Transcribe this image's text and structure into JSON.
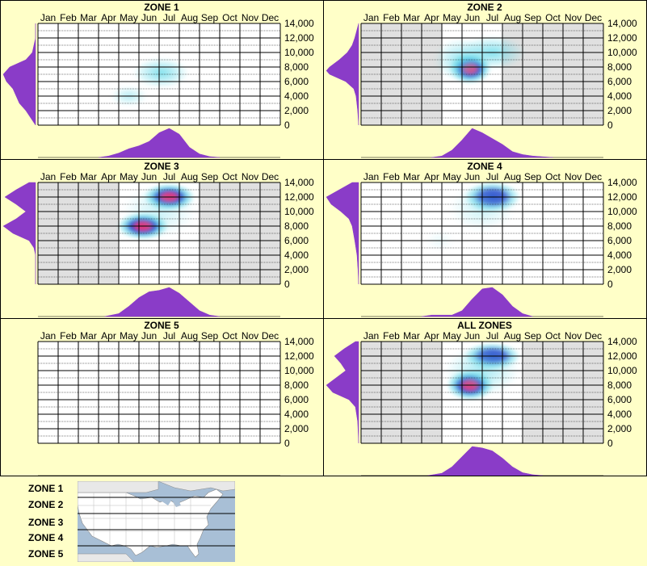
{
  "figure": {
    "months": [
      "Jan",
      "Feb",
      "Mar",
      "Apr",
      "May",
      "Jun",
      "Jul",
      "Aug",
      "Sep",
      "Oct",
      "Nov",
      "Dec"
    ],
    "y_ticks": [
      "14,000",
      "12,000",
      "10,000",
      "8,000",
      "6,000",
      "4,000",
      "2,000",
      "0"
    ],
    "colors": {
      "background": "#ffffc8",
      "panel_border": "#000000",
      "plot_bg_active": "#e0e0e0",
      "plot_bg_none": "#ffffff",
      "density_fill": "#8a3cc8",
      "heat_low": "#5fd8e8",
      "heat_mid": "#1f3ec8",
      "heat_high": "#e8206e"
    }
  },
  "chart_data": [
    {
      "type": "heatmap",
      "title": "ZONE 1",
      "x_categories": [
        "Jan",
        "Feb",
        "Mar",
        "Apr",
        "May",
        "Jun",
        "Jul",
        "Aug",
        "Sep",
        "Oct",
        "Nov",
        "Dec"
      ],
      "ylim": [
        0,
        14000
      ],
      "grid": true,
      "active_months": [],
      "hotspots": [
        {
          "month": 6.6,
          "elev": 7200,
          "intensity": 0.35,
          "sx": 0.6,
          "sy": 900
        },
        {
          "month": 5.0,
          "elev": 4000,
          "intensity": 0.2,
          "sx": 0.4,
          "sy": 600
        }
      ],
      "elevation_density": [
        [
          0,
          0
        ],
        [
          1000,
          0.15
        ],
        [
          2000,
          0.3
        ],
        [
          3000,
          0.5
        ],
        [
          4000,
          0.6
        ],
        [
          5000,
          0.7
        ],
        [
          6000,
          0.9
        ],
        [
          7000,
          1.0
        ],
        [
          8000,
          0.8
        ],
        [
          9000,
          0.3
        ],
        [
          10000,
          0.1
        ],
        [
          11000,
          0.05
        ],
        [
          12000,
          0
        ],
        [
          14000,
          0
        ]
      ],
      "month_density": [
        [
          3.5,
          0
        ],
        [
          4.0,
          0.05
        ],
        [
          4.5,
          0.15
        ],
        [
          5.0,
          0.3
        ],
        [
          5.5,
          0.4
        ],
        [
          6.0,
          0.55
        ],
        [
          6.5,
          0.85
        ],
        [
          7.0,
          1.0
        ],
        [
          7.5,
          0.8
        ],
        [
          8.0,
          0.35
        ],
        [
          8.5,
          0.12
        ],
        [
          9.0,
          0.03
        ],
        [
          9.5,
          0
        ]
      ]
    },
    {
      "type": "heatmap",
      "title": "ZONE 2",
      "x_categories": [
        "Jan",
        "Feb",
        "Mar",
        "Apr",
        "May",
        "Jun",
        "Jul",
        "Aug",
        "Sep",
        "Oct",
        "Nov",
        "Dec"
      ],
      "ylim": [
        0,
        14000
      ],
      "grid": true,
      "active_months": [
        "Jan",
        "Feb",
        "Mar",
        "Apr",
        "Aug",
        "Sep",
        "Oct",
        "Nov",
        "Dec"
      ],
      "hotspots": [
        {
          "month": 5.9,
          "elev": 7800,
          "intensity": 1.0,
          "sx": 0.45,
          "sy": 900
        },
        {
          "month": 7.0,
          "elev": 10000,
          "intensity": 0.35,
          "sx": 0.7,
          "sy": 1000
        },
        {
          "month": 5.5,
          "elev": 9000,
          "intensity": 0.3,
          "sx": 0.6,
          "sy": 1300
        }
      ],
      "elevation_density": [
        [
          0,
          0
        ],
        [
          2000,
          0.03
        ],
        [
          4000,
          0.08
        ],
        [
          5000,
          0.15
        ],
        [
          6000,
          0.4
        ],
        [
          7000,
          0.9
        ],
        [
          7500,
          1.0
        ],
        [
          8000,
          0.9
        ],
        [
          9000,
          0.6
        ],
        [
          10000,
          0.35
        ],
        [
          11000,
          0.2
        ],
        [
          12000,
          0.12
        ],
        [
          13000,
          0.06
        ],
        [
          14000,
          0
        ]
      ],
      "month_density": [
        [
          4.0,
          0
        ],
        [
          4.5,
          0.05
        ],
        [
          5.0,
          0.25
        ],
        [
          5.5,
          0.6
        ],
        [
          6.0,
          1.0
        ],
        [
          6.5,
          0.85
        ],
        [
          7.0,
          0.65
        ],
        [
          7.5,
          0.45
        ],
        [
          8.0,
          0.2
        ],
        [
          8.5,
          0.1
        ],
        [
          9.0,
          0.05
        ],
        [
          10.0,
          0
        ]
      ]
    },
    {
      "type": "heatmap",
      "title": "ZONE 3",
      "x_categories": [
        "Jan",
        "Feb",
        "Mar",
        "Apr",
        "May",
        "Jun",
        "Jul",
        "Aug",
        "Sep",
        "Oct",
        "Nov",
        "Dec"
      ],
      "ylim": [
        0,
        14000
      ],
      "grid": true,
      "active_months": [
        "Jan",
        "Feb",
        "Mar",
        "Apr",
        "Sep",
        "Oct",
        "Nov",
        "Dec"
      ],
      "hotspots": [
        {
          "month": 7.0,
          "elev": 12000,
          "intensity": 1.0,
          "sx": 0.55,
          "sy": 800
        },
        {
          "month": 5.7,
          "elev": 8000,
          "intensity": 0.95,
          "sx": 0.55,
          "sy": 800
        },
        {
          "month": 6.5,
          "elev": 10000,
          "intensity": 0.15,
          "sx": 0.8,
          "sy": 1500
        }
      ],
      "elevation_density": [
        [
          0,
          0
        ],
        [
          4000,
          0
        ],
        [
          5000,
          0.05
        ],
        [
          6000,
          0.2
        ],
        [
          7000,
          0.7
        ],
        [
          8000,
          1.0
        ],
        [
          9000,
          0.6
        ],
        [
          10000,
          0.3
        ],
        [
          11000,
          0.6
        ],
        [
          12000,
          0.95
        ],
        [
          13000,
          0.6
        ],
        [
          14000,
          0.2
        ]
      ],
      "month_density": [
        [
          3.8,
          0
        ],
        [
          4.5,
          0.1
        ],
        [
          5.0,
          0.35
        ],
        [
          5.5,
          0.65
        ],
        [
          6.0,
          0.85
        ],
        [
          6.5,
          0.9
        ],
        [
          7.0,
          1.0
        ],
        [
          7.5,
          0.8
        ],
        [
          8.0,
          0.5
        ],
        [
          8.5,
          0.2
        ],
        [
          9.0,
          0.05
        ],
        [
          9.5,
          0
        ]
      ]
    },
    {
      "type": "heatmap",
      "title": "ZONE 4",
      "x_categories": [
        "Jan",
        "Feb",
        "Mar",
        "Apr",
        "May",
        "Jun",
        "Jul",
        "Aug",
        "Sep",
        "Oct",
        "Nov",
        "Dec"
      ],
      "ylim": [
        0,
        14000
      ],
      "grid": true,
      "active_months": [],
      "hotspots": [
        {
          "month": 7.0,
          "elev": 12000,
          "intensity": 0.75,
          "sx": 0.6,
          "sy": 900
        },
        {
          "month": 6.5,
          "elev": 10500,
          "intensity": 0.15,
          "sx": 0.7,
          "sy": 1400
        },
        {
          "month": 4.4,
          "elev": 6000,
          "intensity": 0.06,
          "sx": 0.3,
          "sy": 600
        }
      ],
      "elevation_density": [
        [
          0,
          0
        ],
        [
          2000,
          0.02
        ],
        [
          4000,
          0.05
        ],
        [
          6000,
          0.12
        ],
        [
          8000,
          0.2
        ],
        [
          9000,
          0.3
        ],
        [
          10000,
          0.55
        ],
        [
          11000,
          0.85
        ],
        [
          12000,
          1.0
        ],
        [
          13000,
          0.6
        ],
        [
          14000,
          0.2
        ]
      ],
      "month_density": [
        [
          3.5,
          0
        ],
        [
          4.0,
          0.05
        ],
        [
          4.5,
          0.05
        ],
        [
          5.0,
          0.05
        ],
        [
          5.5,
          0.2
        ],
        [
          6.0,
          0.6
        ],
        [
          6.5,
          0.95
        ],
        [
          7.0,
          1.0
        ],
        [
          7.5,
          0.75
        ],
        [
          8.0,
          0.35
        ],
        [
          8.5,
          0.1
        ],
        [
          9.0,
          0
        ]
      ]
    },
    {
      "type": "heatmap",
      "title": "ZONE 5",
      "x_categories": [
        "Jan",
        "Feb",
        "Mar",
        "Apr",
        "May",
        "Jun",
        "Jul",
        "Aug",
        "Sep",
        "Oct",
        "Nov",
        "Dec"
      ],
      "ylim": [
        0,
        14000
      ],
      "grid": true,
      "active_months": [],
      "hotspots": [],
      "elevation_density": [],
      "month_density": []
    },
    {
      "type": "heatmap",
      "title": "ALL ZONES",
      "x_categories": [
        "Jan",
        "Feb",
        "Mar",
        "Apr",
        "May",
        "Jun",
        "Jul",
        "Aug",
        "Sep",
        "Oct",
        "Nov",
        "Dec"
      ],
      "ylim": [
        0,
        14000
      ],
      "grid": true,
      "active_months": [
        "Jan",
        "Feb",
        "Mar",
        "Apr",
        "Sep",
        "Oct",
        "Nov",
        "Dec"
      ],
      "hotspots": [
        {
          "month": 5.9,
          "elev": 8000,
          "intensity": 1.0,
          "sx": 0.5,
          "sy": 900
        },
        {
          "month": 7.0,
          "elev": 12000,
          "intensity": 0.8,
          "sx": 0.6,
          "sy": 800
        },
        {
          "month": 6.5,
          "elev": 10000,
          "intensity": 0.25,
          "sx": 0.8,
          "sy": 1500
        }
      ],
      "elevation_density": [
        [
          0,
          0
        ],
        [
          3000,
          0.03
        ],
        [
          5000,
          0.1
        ],
        [
          6000,
          0.3
        ],
        [
          7000,
          0.8
        ],
        [
          8000,
          1.0
        ],
        [
          9000,
          0.7
        ],
        [
          10000,
          0.4
        ],
        [
          11000,
          0.55
        ],
        [
          12000,
          0.75
        ],
        [
          13000,
          0.45
        ],
        [
          14000,
          0.1
        ]
      ],
      "month_density": [
        [
          3.8,
          0
        ],
        [
          4.5,
          0.08
        ],
        [
          5.0,
          0.3
        ],
        [
          5.5,
          0.65
        ],
        [
          6.0,
          1.0
        ],
        [
          6.5,
          0.95
        ],
        [
          7.0,
          0.85
        ],
        [
          7.5,
          0.6
        ],
        [
          8.0,
          0.3
        ],
        [
          8.5,
          0.1
        ],
        [
          9.0,
          0.03
        ],
        [
          9.5,
          0
        ]
      ]
    }
  ],
  "legend": {
    "zones": [
      "ZONE 1",
      "ZONE 2",
      "ZONE 3",
      "ZONE 4",
      "ZONE 5"
    ],
    "map_icon": "us-map-icon"
  }
}
